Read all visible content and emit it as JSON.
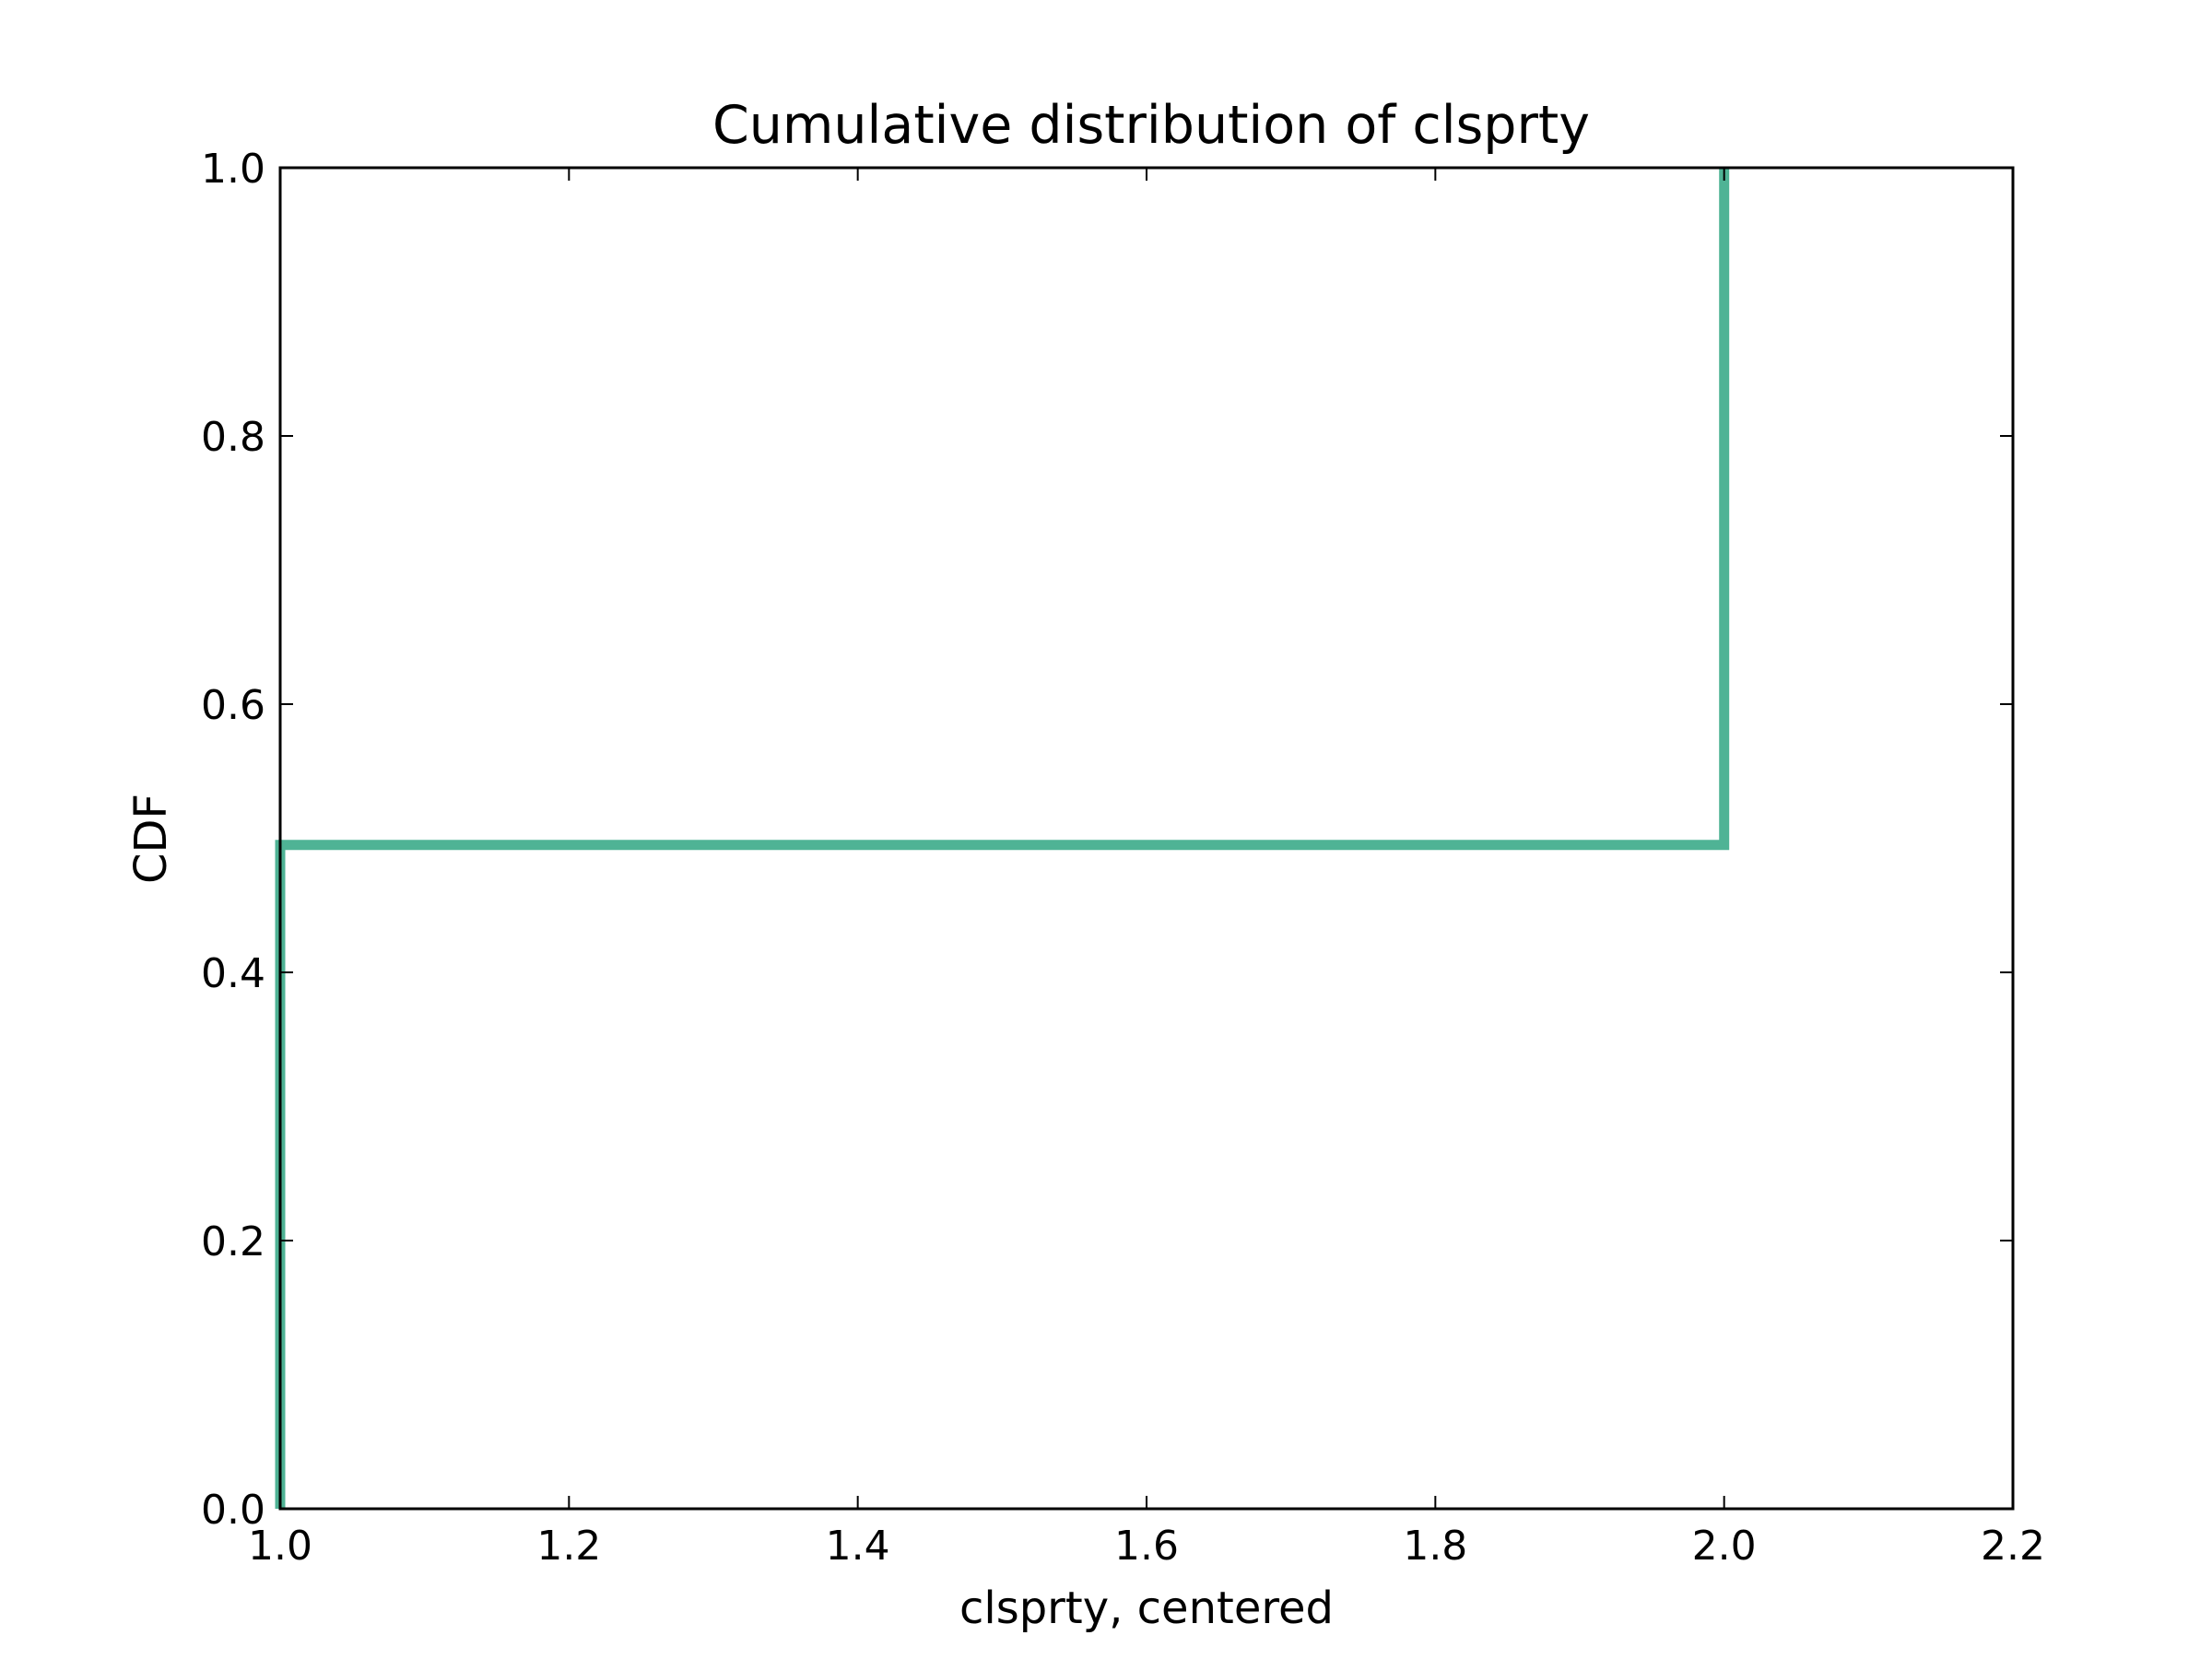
{
  "chart_data": {
    "type": "line",
    "title": "Cumulative distribution of clsprty",
    "xlabel": "clsprty, centered",
    "ylabel": "CDF",
    "xlim": [
      1.0,
      2.2
    ],
    "ylim": [
      0.0,
      1.0
    ],
    "xticks": [
      "1.0",
      "1.2",
      "1.4",
      "1.6",
      "1.8",
      "2.0",
      "2.2"
    ],
    "yticks": [
      "0.0",
      "0.2",
      "0.4",
      "0.6",
      "0.8",
      "1.0"
    ],
    "grid": false,
    "legend": "none",
    "series": [
      {
        "step": true,
        "color": "#4fb395",
        "x": [
          1.0,
          1.0,
          2.0,
          2.0
        ],
        "y": [
          0.0,
          0.495,
          0.495,
          1.0
        ]
      }
    ]
  }
}
